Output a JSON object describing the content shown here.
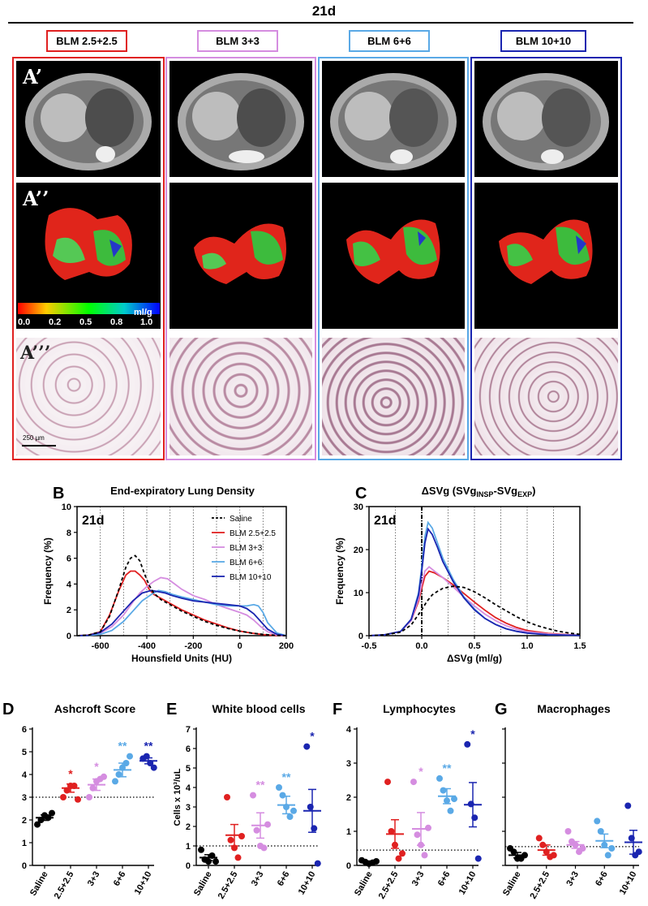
{
  "figure": {
    "timepoint_title": "21d",
    "groups": [
      {
        "label": "BLM 2.5+2.5",
        "color": "#e02020"
      },
      {
        "label": "BLM 3+3",
        "color": "#d58de0"
      },
      {
        "label": "BLM 6+6",
        "color": "#5aa9e6"
      },
      {
        "label": "BLM 10+10",
        "color": "#1a25b0"
      }
    ],
    "row_labels": [
      "A’",
      "A’’",
      "A’’’"
    ],
    "colorbar": {
      "unit": "ml/g",
      "ticks": [
        "0.0",
        "0.2",
        "0.5",
        "0.8",
        "1.0"
      ]
    },
    "scalebar": "250 µm"
  },
  "chart_data": [
    {
      "panel": "B",
      "type": "line",
      "title": "End-expiratory Lung Density",
      "annotation": "21d",
      "xlabel": "Hounsfield Units (HU)",
      "ylabel": "Frequency (%)",
      "xlim": [
        -700,
        200
      ],
      "ylim": [
        0,
        10
      ],
      "xticks": [
        "-600",
        "-400",
        "-200",
        "0",
        "200"
      ],
      "yticks": [
        "0",
        "2",
        "4",
        "6",
        "8",
        "10"
      ],
      "legend_position": "top-right",
      "series": [
        {
          "name": "Saline",
          "color": "#000000",
          "dash": true,
          "x": [
            -700,
            -650,
            -600,
            -560,
            -520,
            -490,
            -470,
            -450,
            -430,
            -410,
            -390,
            -370,
            -340,
            -300,
            -250,
            -200,
            -150,
            -100,
            -50,
            0,
            50,
            100,
            150,
            200
          ],
          "y": [
            0,
            0.05,
            0.3,
            1.5,
            3.6,
            5.3,
            6.0,
            6.2,
            5.8,
            4.8,
            3.9,
            3.3,
            2.8,
            2.4,
            1.9,
            1.5,
            1.1,
            0.8,
            0.55,
            0.35,
            0.2,
            0.1,
            0.03,
            0
          ]
        },
        {
          "name": "BLM 2.5+2.5",
          "color": "#e02020",
          "x": [
            -700,
            -650,
            -600,
            -560,
            -520,
            -490,
            -470,
            -450,
            -430,
            -410,
            -390,
            -370,
            -340,
            -300,
            -250,
            -200,
            -150,
            -100,
            -50,
            0,
            50,
            100,
            150,
            200
          ],
          "y": [
            0,
            0.05,
            0.3,
            1.6,
            3.5,
            4.7,
            5.0,
            5.0,
            4.7,
            4.3,
            3.6,
            3.2,
            2.9,
            2.5,
            2.0,
            1.6,
            1.2,
            0.9,
            0.6,
            0.35,
            0.2,
            0.08,
            0.02,
            0
          ]
        },
        {
          "name": "BLM 3+3",
          "color": "#d58de0",
          "x": [
            -700,
            -650,
            -600,
            -550,
            -500,
            -460,
            -430,
            -400,
            -370,
            -340,
            -310,
            -280,
            -250,
            -200,
            -150,
            -100,
            -50,
            0,
            30,
            60,
            90,
            120,
            160,
            200
          ],
          "y": [
            0,
            0.03,
            0.2,
            0.7,
            1.6,
            2.6,
            3.3,
            3.8,
            4.2,
            4.5,
            4.4,
            4.0,
            3.6,
            3.1,
            2.8,
            2.4,
            2.1,
            1.8,
            1.6,
            1.2,
            0.7,
            0.3,
            0.05,
            0
          ]
        },
        {
          "name": "BLM 6+6",
          "color": "#5aa9e6",
          "x": [
            -700,
            -650,
            -600,
            -550,
            -500,
            -460,
            -420,
            -380,
            -350,
            -320,
            -290,
            -250,
            -200,
            -150,
            -100,
            -50,
            0,
            30,
            60,
            80,
            100,
            120,
            160,
            200
          ],
          "y": [
            0,
            0.02,
            0.1,
            0.4,
            1.1,
            1.9,
            2.7,
            3.2,
            3.5,
            3.4,
            3.2,
            3.0,
            2.8,
            2.6,
            2.4,
            2.3,
            2.3,
            2.3,
            2.4,
            2.3,
            1.8,
            1.0,
            0.2,
            0
          ]
        },
        {
          "name": "BLM 10+10",
          "color": "#1a25b0",
          "x": [
            -700,
            -650,
            -600,
            -550,
            -500,
            -460,
            -420,
            -380,
            -350,
            -320,
            -290,
            -250,
            -200,
            -150,
            -100,
            -50,
            0,
            30,
            60,
            90,
            120,
            160,
            200
          ],
          "y": [
            0,
            0.03,
            0.25,
            0.9,
            1.9,
            2.7,
            3.3,
            3.5,
            3.4,
            3.3,
            3.1,
            2.9,
            2.7,
            2.6,
            2.5,
            2.4,
            2.3,
            2.1,
            1.7,
            1.1,
            0.5,
            0.1,
            0
          ]
        }
      ]
    },
    {
      "panel": "C",
      "type": "line",
      "title": "ΔSVg (SVg",
      "title_sub1": "INSP",
      "title_mid": "-SVg",
      "title_sub2": "EXP",
      "title_end": ")",
      "annotation": "21d",
      "xlabel": "ΔSVg (ml/g)",
      "ylabel": "Frequency (%)",
      "xlim": [
        -0.5,
        1.5
      ],
      "ylim": [
        0,
        30
      ],
      "xticks": [
        "-0.5",
        "0.0",
        "0.5",
        "1.0",
        "1.5"
      ],
      "yticks": [
        "0",
        "10",
        "20",
        "30"
      ],
      "series": [
        {
          "name": "Saline",
          "color": "#000000",
          "dash": true,
          "x": [
            -0.5,
            -0.35,
            -0.2,
            -0.1,
            0,
            0.05,
            0.1,
            0.15,
            0.2,
            0.3,
            0.4,
            0.5,
            0.6,
            0.7,
            0.8,
            0.9,
            1.0,
            1.1,
            1.2,
            1.3,
            1.4,
            1.5
          ],
          "y": [
            0,
            0.2,
            0.8,
            2.5,
            6.0,
            8.0,
            9.5,
            10.3,
            11.0,
            11.5,
            11.2,
            10.2,
            8.8,
            7.2,
            5.8,
            4.4,
            3.2,
            2.3,
            1.6,
            1.0,
            0.6,
            0.3
          ]
        },
        {
          "name": "BLM 2.5+2.5",
          "color": "#e02020",
          "x": [
            -0.5,
            -0.35,
            -0.2,
            -0.1,
            -0.03,
            0,
            0.03,
            0.07,
            0.12,
            0.2,
            0.3,
            0.4,
            0.5,
            0.6,
            0.7,
            0.8,
            0.9,
            1.0,
            1.2,
            1.5
          ],
          "y": [
            0,
            0.2,
            1.0,
            3.5,
            8.0,
            11.0,
            13.8,
            15.0,
            14.6,
            13.5,
            11.8,
            9.8,
            7.8,
            5.9,
            4.2,
            2.9,
            1.9,
            1.2,
            0.5,
            0.1
          ]
        },
        {
          "name": "BLM 3+3",
          "color": "#d58de0",
          "x": [
            -0.5,
            -0.35,
            -0.2,
            -0.1,
            -0.03,
            0,
            0.03,
            0.07,
            0.12,
            0.2,
            0.3,
            0.4,
            0.5,
            0.6,
            0.7,
            0.8,
            0.9,
            1.0,
            1.2,
            1.5
          ],
          "y": [
            0,
            0.2,
            1.0,
            3.5,
            8.5,
            12.0,
            15.0,
            16.0,
            15.0,
            13.5,
            11.3,
            9.0,
            6.9,
            5.0,
            3.5,
            2.3,
            1.5,
            0.9,
            0.4,
            0.1
          ]
        },
        {
          "name": "BLM 6+6",
          "color": "#5aa9e6",
          "x": [
            -0.5,
            -0.35,
            -0.2,
            -0.1,
            -0.03,
            0,
            0.03,
            0.06,
            0.1,
            0.15,
            0.2,
            0.3,
            0.4,
            0.5,
            0.6,
            0.7,
            0.8,
            0.9,
            1.0,
            1.2,
            1.5
          ],
          "y": [
            0,
            0.2,
            1.0,
            3.8,
            10.0,
            16.0,
            23.0,
            26.3,
            25.0,
            21.5,
            18.0,
            13.0,
            9.0,
            6.2,
            4.0,
            2.6,
            1.6,
            1.0,
            0.6,
            0.2,
            0.05
          ]
        },
        {
          "name": "BLM 10+10",
          "color": "#1a25b0",
          "x": [
            -0.5,
            -0.35,
            -0.2,
            -0.1,
            -0.03,
            0,
            0.03,
            0.06,
            0.1,
            0.15,
            0.2,
            0.3,
            0.4,
            0.5,
            0.6,
            0.7,
            0.8,
            0.9,
            1.0,
            1.2,
            1.5
          ],
          "y": [
            0,
            0.2,
            1.0,
            3.8,
            9.5,
            15.0,
            21.5,
            24.8,
            23.5,
            20.5,
            17.2,
            12.5,
            8.8,
            6.0,
            4.0,
            2.6,
            1.6,
            1.0,
            0.6,
            0.2,
            0.05
          ]
        }
      ]
    },
    {
      "panel": "D",
      "type": "scatter",
      "title": "Ashcroft Score",
      "ylabel": "",
      "ylim": [
        0,
        6
      ],
      "yticks": [
        "0",
        "1",
        "2",
        "3",
        "4",
        "5",
        "6"
      ],
      "categories": [
        "Saline",
        "2.5+2.5",
        "3+3",
        "6+6",
        "10+10"
      ],
      "colors": [
        "#000000",
        "#e02020",
        "#d58de0",
        "#5aa9e6",
        "#1a25b0"
      ],
      "means": [
        2.1,
        3.4,
        3.55,
        4.2,
        4.6
      ],
      "sems": [
        0.12,
        0.18,
        0.25,
        0.3,
        0.13
      ],
      "points": [
        [
          1.8,
          2.0,
          2.2,
          2.1,
          2.3
        ],
        [
          3.0,
          3.3,
          3.5,
          3.5,
          2.9
        ],
        [
          3.0,
          3.4,
          3.7,
          3.8,
          3.9
        ],
        [
          3.7,
          4.0,
          4.3,
          4.5,
          4.8
        ],
        [
          4.7,
          4.8,
          4.5,
          4.3
        ]
      ],
      "significance": [
        "",
        "*",
        "*",
        "**",
        "**"
      ],
      "reference_line": 3
    },
    {
      "panel": "E",
      "type": "scatter",
      "title": "White blood cells",
      "ylabel": "Cells x 10³/uL",
      "ylim": [
        0,
        7
      ],
      "yticks": [
        "0",
        "1",
        "2",
        "3",
        "4",
        "5",
        "6",
        "7"
      ],
      "categories": [
        "Saline",
        "2.5+2.5",
        "3+3",
        "6+6",
        "10+10"
      ],
      "colors": [
        "#000000",
        "#e02020",
        "#d58de0",
        "#5aa9e6",
        "#1a25b0"
      ],
      "means": [
        0.4,
        1.55,
        2.05,
        3.1,
        2.8
      ],
      "sems": [
        0.15,
        0.55,
        0.65,
        0.45,
        1.1
      ],
      "points": [
        [
          0.8,
          0.3,
          0.2,
          0.5,
          0.2
        ],
        [
          3.5,
          1.3,
          0.9,
          0.4,
          1.5
        ],
        [
          3.6,
          1.8,
          1.0,
          0.9,
          2.1
        ],
        [
          4.0,
          3.6,
          3.0,
          2.5,
          2.8
        ],
        [
          6.1,
          3.0,
          1.9,
          0.1
        ]
      ],
      "significance": [
        "",
        "",
        "**",
        "**",
        "*"
      ],
      "reference_line": 1
    },
    {
      "panel": "F",
      "type": "scatter",
      "title": "Lymphocytes",
      "ylabel": "",
      "ylim": [
        0,
        4
      ],
      "yticks": [
        "0",
        "1",
        "2",
        "3",
        "4"
      ],
      "categories": [
        "Saline",
        "2.5+2.5",
        "3+3",
        "6+6",
        "10+10"
      ],
      "colors": [
        "#000000",
        "#e02020",
        "#d58de0",
        "#5aa9e6",
        "#1a25b0"
      ],
      "means": [
        0.1,
        0.92,
        1.07,
        2.03,
        1.78
      ],
      "sems": [
        0.03,
        0.42,
        0.48,
        0.22,
        0.65
      ],
      "points": [
        [
          0.15,
          0.1,
          0.05,
          0.08,
          0.12
        ],
        [
          2.45,
          1.0,
          0.6,
          0.2,
          0.35
        ],
        [
          2.45,
          0.9,
          0.6,
          0.3,
          1.1
        ],
        [
          2.55,
          2.2,
          1.9,
          1.6,
          1.95
        ],
        [
          3.55,
          1.8,
          1.4,
          0.2
        ]
      ],
      "significance": [
        "",
        "",
        "*",
        "**",
        "*"
      ],
      "reference_line": 0.45
    },
    {
      "panel": "G",
      "type": "scatter",
      "title": "Macrophages",
      "ylabel": "",
      "ylim": [
        0,
        4
      ],
      "yticks": [],
      "categories": [
        "Saline",
        "2.5+2.5",
        "3+3",
        "6+6",
        "10+10"
      ],
      "colors": [
        "#000000",
        "#e02020",
        "#d58de0",
        "#5aa9e6",
        "#1a25b0"
      ],
      "means": [
        0.3,
        0.45,
        0.6,
        0.72,
        0.68
      ],
      "sems": [
        0.08,
        0.15,
        0.1,
        0.2,
        0.35
      ],
      "points": [
        [
          0.5,
          0.4,
          0.2,
          0.2,
          0.3
        ],
        [
          0.8,
          0.6,
          0.4,
          0.25,
          0.3
        ],
        [
          1.0,
          0.7,
          0.6,
          0.4,
          0.5
        ],
        [
          1.3,
          1.0,
          0.6,
          0.3,
          0.5
        ],
        [
          1.75,
          0.8,
          0.3,
          0.4
        ]
      ],
      "significance": [
        "",
        "",
        "",
        "",
        ""
      ],
      "reference_line": 0.55
    }
  ]
}
